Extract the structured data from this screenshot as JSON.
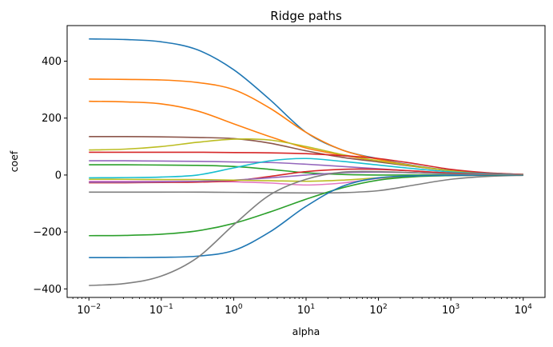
{
  "chart_data": {
    "type": "line",
    "title": "Ridge paths",
    "xlabel": "alpha",
    "ylabel": "coef",
    "xscale": "log",
    "xlim": [
      0.005,
      20000
    ],
    "ylim": [
      -430,
      525
    ],
    "grid": false,
    "legend": "none",
    "y_ticks": [
      {
        "value": -400,
        "label": "−400"
      },
      {
        "value": -200,
        "label": "−200"
      },
      {
        "value": 0,
        "label": "0"
      },
      {
        "value": 200,
        "label": "200"
      },
      {
        "value": 400,
        "label": "400"
      }
    ],
    "x_ticks": [
      {
        "value": 0.01,
        "base": "10",
        "exp": "−2"
      },
      {
        "value": 0.1,
        "base": "10",
        "exp": "−1"
      },
      {
        "value": 1,
        "base": "10",
        "exp": "0"
      },
      {
        "value": 10,
        "base": "10",
        "exp": "1"
      },
      {
        "value": 100,
        "base": "10",
        "exp": "2"
      },
      {
        "value": 1000,
        "base": "10",
        "exp": "3"
      },
      {
        "value": 10000,
        "base": "10",
        "exp": "4"
      }
    ],
    "x": [
      0.01,
      0.0316,
      0.1,
      0.316,
      1,
      3.16,
      10,
      31.6,
      100,
      316,
      1000,
      3162,
      10000
    ],
    "series": [
      {
        "color": "#1f77b4",
        "values": [
          478,
          476,
          468,
          440,
          370,
          265,
          150,
          88,
          57,
          33,
          16,
          7,
          2
        ]
      },
      {
        "color": "#ff7f0e",
        "values": [
          337,
          336,
          334,
          325,
          300,
          235,
          150,
          88,
          55,
          32,
          15,
          6,
          2
        ]
      },
      {
        "color": "#ff7f0e",
        "values": [
          259,
          257,
          250,
          225,
          180,
          135,
          95,
          70,
          48,
          30,
          15,
          6,
          2
        ]
      },
      {
        "color": "#8c564b",
        "values": [
          135,
          135,
          134,
          132,
          128,
          112,
          85,
          62,
          46,
          30,
          16,
          7,
          2
        ]
      },
      {
        "color": "#bcbd22",
        "values": [
          88,
          91,
          100,
          115,
          126,
          123,
          100,
          72,
          50,
          31,
          15,
          6,
          2
        ]
      },
      {
        "color": "#d62728",
        "values": [
          80,
          80,
          80,
          80,
          79,
          78,
          75,
          68,
          58,
          40,
          20,
          8,
          2
        ]
      },
      {
        "color": "#9467bd",
        "values": [
          50,
          50,
          49,
          48,
          46,
          44,
          38,
          30,
          22,
          14,
          7,
          3,
          1
        ]
      },
      {
        "color": "#2ca02c",
        "values": [
          36,
          36,
          35,
          34,
          30,
          20,
          8,
          2,
          0,
          0,
          0,
          0,
          0
        ]
      },
      {
        "color": "#17becf",
        "values": [
          -10,
          -9,
          -7,
          0,
          25,
          50,
          58,
          48,
          35,
          22,
          11,
          5,
          1
        ]
      },
      {
        "color": "#e377c2",
        "values": [
          -22,
          -22,
          -22,
          -22,
          -24,
          -28,
          -35,
          -28,
          -12,
          -5,
          -2,
          -1,
          0
        ]
      },
      {
        "color": "#d62728",
        "values": [
          -27,
          -27,
          -26,
          -25,
          -20,
          -5,
          12,
          20,
          20,
          14,
          7,
          3,
          1
        ]
      },
      {
        "color": "#9467bd",
        "values": [
          -25,
          -25,
          -24,
          -22,
          -18,
          -10,
          0,
          8,
          10,
          8,
          4,
          2,
          1
        ]
      },
      {
        "color": "#bcbd22",
        "values": [
          -15,
          -15,
          -16,
          -16,
          -18,
          -20,
          -22,
          -18,
          -10,
          -4,
          -1,
          0,
          0
        ]
      },
      {
        "color": "#7f7f7f",
        "values": [
          -60,
          -60,
          -60,
          -60,
          -61,
          -62,
          -63,
          -62,
          -55,
          -35,
          -15,
          -5,
          -1
        ]
      },
      {
        "color": "#2ca02c",
        "values": [
          -213,
          -212,
          -208,
          -196,
          -170,
          -130,
          -85,
          -45,
          -18,
          -6,
          -2,
          -1,
          0
        ]
      },
      {
        "color": "#1f77b4",
        "values": [
          -290,
          -290,
          -289,
          -285,
          -265,
          -200,
          -110,
          -40,
          -10,
          -3,
          -1,
          0,
          0
        ]
      },
      {
        "color": "#7f7f7f",
        "values": [
          -388,
          -381,
          -355,
          -290,
          -175,
          -70,
          -15,
          10,
          12,
          8,
          4,
          2,
          1
        ]
      }
    ]
  }
}
